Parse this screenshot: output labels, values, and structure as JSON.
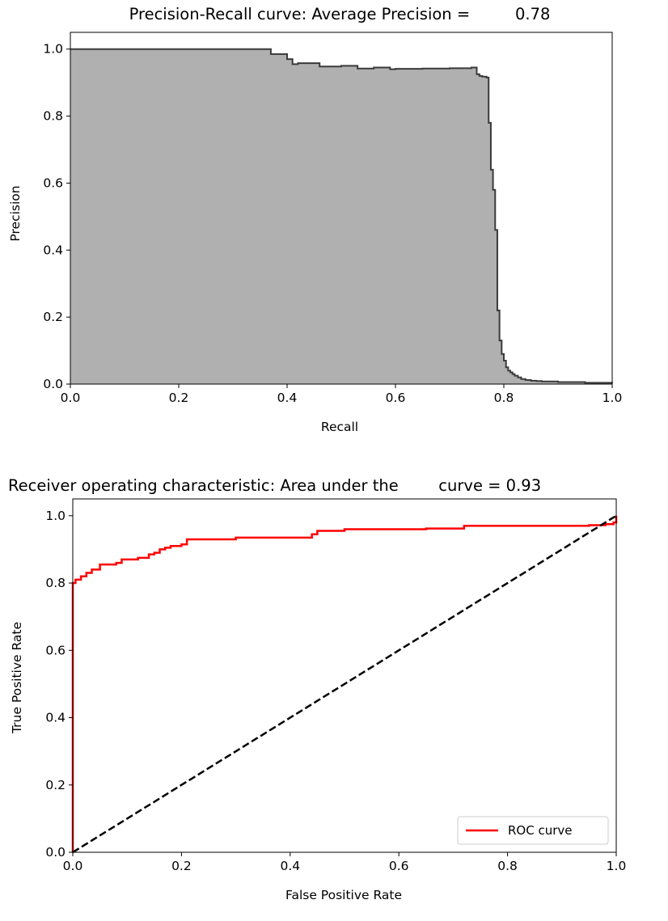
{
  "chart_data": [
    {
      "type": "area",
      "title": "Precision-Recall curve: Average Precision =         0.78",
      "xlabel": "Recall",
      "ylabel": "Precision",
      "xlim": [
        0,
        1.0
      ],
      "ylim": [
        0,
        1.05
      ],
      "xticks": [
        "0.0",
        "0.2",
        "0.4",
        "0.6",
        "0.8",
        "1.0"
      ],
      "yticks": [
        "0.0",
        "0.2",
        "0.4",
        "0.6",
        "0.8",
        "1.0"
      ],
      "grid": false,
      "fill_color": "#b0b0b0",
      "line_color": "#3a3a3a",
      "step": "post",
      "series": [
        {
          "x": [
            0.0,
            0.37,
            0.37,
            0.4,
            0.4,
            0.41,
            0.42,
            0.45,
            0.46,
            0.5,
            0.53,
            0.56,
            0.59,
            0.6,
            0.65,
            0.7,
            0.74,
            0.75,
            0.755,
            0.76,
            0.768,
            0.772,
            0.776,
            0.78,
            0.784,
            0.788,
            0.792,
            0.796,
            0.8,
            0.804,
            0.808,
            0.812,
            0.816,
            0.82,
            0.826,
            0.832,
            0.84,
            0.85,
            0.86,
            0.87,
            0.9,
            0.95,
            1.0
          ],
          "y": [
            1.0,
            1.0,
            0.985,
            0.985,
            0.97,
            0.955,
            0.958,
            0.958,
            0.948,
            0.95,
            0.942,
            0.945,
            0.94,
            0.941,
            0.942,
            0.943,
            0.945,
            0.925,
            0.92,
            0.918,
            0.915,
            0.78,
            0.64,
            0.58,
            0.46,
            0.22,
            0.13,
            0.09,
            0.07,
            0.05,
            0.04,
            0.035,
            0.03,
            0.025,
            0.02,
            0.015,
            0.012,
            0.01,
            0.009,
            0.008,
            0.006,
            0.004,
            0.003
          ]
        }
      ]
    },
    {
      "type": "line",
      "title": "Receiver operating characteristic: Area under the        curve = 0.93",
      "xlabel": "False Positive Rate",
      "ylabel": "True Positive Rate",
      "xlim": [
        0,
        1.0
      ],
      "ylim": [
        0,
        1.05
      ],
      "xticks": [
        "0.0",
        "0.2",
        "0.4",
        "0.6",
        "0.8",
        "1.0"
      ],
      "yticks": [
        "0.0",
        "0.2",
        "0.4",
        "0.6",
        "0.8",
        "1.0"
      ],
      "grid": false,
      "legend_position": "lower-right",
      "series": [
        {
          "name": "ROC curve",
          "color": "#ff0000",
          "style": "solid",
          "step": "post",
          "x": [
            0.0,
            0.0,
            0.005,
            0.015,
            0.025,
            0.035,
            0.05,
            0.08,
            0.09,
            0.12,
            0.14,
            0.15,
            0.16,
            0.17,
            0.18,
            0.2,
            0.21,
            0.3,
            0.33,
            0.35,
            0.44,
            0.45,
            0.48,
            0.5,
            0.55,
            0.6,
            0.65,
            0.7,
            0.72,
            0.75,
            0.8,
            0.85,
            0.9,
            0.95,
            0.98,
            0.99,
            0.995,
            1.0,
            1.0
          ],
          "y": [
            0.0,
            0.8,
            0.81,
            0.82,
            0.83,
            0.84,
            0.855,
            0.86,
            0.87,
            0.875,
            0.885,
            0.89,
            0.9,
            0.905,
            0.91,
            0.915,
            0.93,
            0.935,
            0.935,
            0.935,
            0.945,
            0.955,
            0.955,
            0.96,
            0.96,
            0.96,
            0.962,
            0.962,
            0.97,
            0.97,
            0.97,
            0.97,
            0.97,
            0.972,
            0.975,
            0.975,
            0.98,
            0.99,
            1.0
          ]
        },
        {
          "color": "#000000",
          "style": "dashed",
          "x": [
            0.0,
            1.0
          ],
          "y": [
            0.0,
            1.0
          ]
        }
      ]
    }
  ]
}
